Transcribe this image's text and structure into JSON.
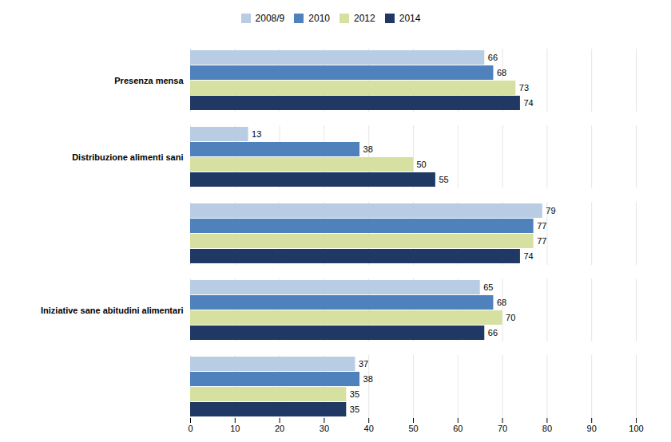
{
  "chart_data": {
    "type": "bar",
    "orientation": "horizontal",
    "categories": [
      "Presenza mensa",
      "Distribuzione alimenti sani",
      null,
      "Iniziative sane abitudini alimentari",
      null
    ],
    "series": [
      {
        "name": "2008/9",
        "color": "#b8cce4",
        "values": [
          66,
          13,
          79,
          65,
          37
        ]
      },
      {
        "name": "2010",
        "color": "#4f81bd",
        "values": [
          68,
          38,
          77,
          68,
          38
        ]
      },
      {
        "name": "2012",
        "color": "#d6e0a0",
        "values": [
          73,
          50,
          77,
          70,
          35
        ]
      },
      {
        "name": "2014",
        "color": "#1f3864",
        "values": [
          74,
          55,
          74,
          66,
          35
        ]
      }
    ],
    "xlim": [
      0,
      100
    ],
    "xticks": [
      0,
      10,
      20,
      30,
      40,
      50,
      60,
      70,
      80,
      90,
      100
    ],
    "grid": true,
    "data_labels": true,
    "legend": "top"
  }
}
